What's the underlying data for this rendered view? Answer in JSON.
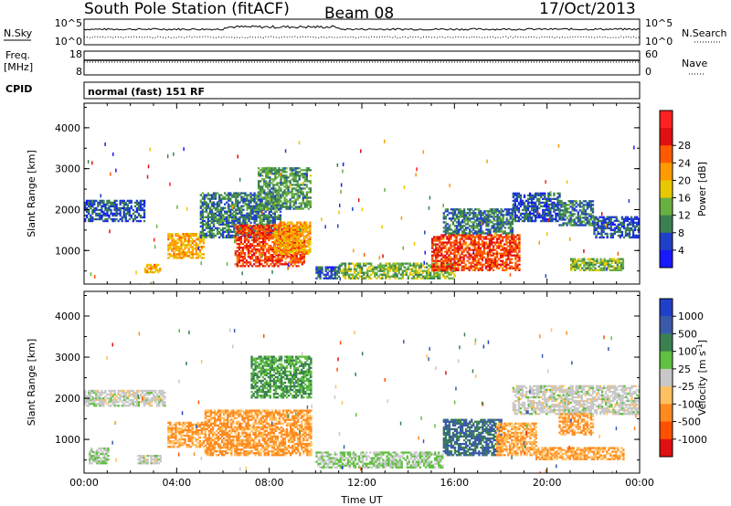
{
  "header": {
    "title": "South Pole Station (fitACF)",
    "beam": "Beam 08",
    "date": "17/Oct/2013"
  },
  "noise_panel": {
    "left_label": "N.Sky",
    "left_ticks": [
      "10^5",
      "10^0"
    ],
    "right_ticks": [
      "10^5",
      "10^0"
    ],
    "right_label": "N.Search"
  },
  "freq_panel": {
    "left_label_1": "Freq.",
    "left_label_2": "[MHz]",
    "left_ticks": [
      "18",
      "8"
    ],
    "right_ticks": [
      "60",
      "0"
    ],
    "right_label": "Nave"
  },
  "cpid_panel": {
    "label": "CPID",
    "text": "normal (fast) 151 RF"
  },
  "chart_data": [
    {
      "type": "heatmap",
      "quantity": "power",
      "ylabel": "Slant Range [km]",
      "ylim": [
        180,
        4600
      ],
      "yticks": [
        "1000",
        "2000",
        "3000",
        "4000"
      ],
      "xticks": [
        "00:00",
        "04:00",
        "08:00",
        "12:00",
        "16:00",
        "20:00",
        "00:00"
      ],
      "xlim_hours": [
        0,
        24
      ],
      "colorbar": {
        "label": "Power [dB]",
        "ticks": [
          "4",
          "8",
          "12",
          "16",
          "20",
          "24",
          "28"
        ],
        "colors": [
          "#1919ff",
          "#2040c8",
          "#3a8050",
          "#68b040",
          "#e8c800",
          "#ff9a00",
          "#ff5a00",
          "#e01010",
          "#ff2020"
        ],
        "range": [
          0,
          31
        ]
      },
      "echo_regions": [
        {
          "t0": 0.0,
          "t1": 2.6,
          "r0": 1700,
          "r1": 2200,
          "db": 6
        },
        {
          "t0": 2.6,
          "t1": 3.3,
          "r0": 450,
          "r1": 650,
          "db": 18
        },
        {
          "t0": 3.6,
          "t1": 5.2,
          "r0": 800,
          "r1": 1400,
          "db": 18
        },
        {
          "t0": 5.0,
          "t1": 8.5,
          "r0": 1300,
          "r1": 2400,
          "db": 8
        },
        {
          "t0": 6.5,
          "t1": 9.5,
          "r0": 600,
          "r1": 1600,
          "db": 24
        },
        {
          "t0": 7.5,
          "t1": 9.8,
          "r0": 2000,
          "r1": 3000,
          "db": 10
        },
        {
          "t0": 8.2,
          "t1": 9.8,
          "r0": 900,
          "r1": 1700,
          "db": 18
        },
        {
          "t0": 10.0,
          "t1": 11.0,
          "r0": 300,
          "r1": 600,
          "db": 6
        },
        {
          "t0": 11.0,
          "t1": 16.0,
          "r0": 300,
          "r1": 700,
          "db": 12
        },
        {
          "t0": 15.0,
          "t1": 18.8,
          "r0": 500,
          "r1": 1400,
          "db": 24
        },
        {
          "t0": 15.5,
          "t1": 18.5,
          "r0": 1400,
          "r1": 2000,
          "db": 8
        },
        {
          "t0": 18.5,
          "t1": 20.5,
          "r0": 1700,
          "r1": 2400,
          "db": 6
        },
        {
          "t0": 20.5,
          "t1": 22.0,
          "r0": 1600,
          "r1": 2200,
          "db": 8
        },
        {
          "t0": 21.0,
          "t1": 23.3,
          "r0": 500,
          "r1": 800,
          "db": 12
        },
        {
          "t0": 22.0,
          "t1": 24.0,
          "r0": 1300,
          "r1": 1800,
          "db": 6
        }
      ]
    },
    {
      "type": "heatmap",
      "quantity": "velocity",
      "ylabel": "Slant Range [km]",
      "ylim": [
        180,
        4600
      ],
      "yticks": [
        "1000",
        "2000",
        "3000",
        "4000"
      ],
      "xticks": [
        "00:00",
        "04:00",
        "08:00",
        "12:00",
        "16:00",
        "20:00",
        "00:00"
      ],
      "xlabel": "Time UT",
      "xlim_hours": [
        0,
        24
      ],
      "colorbar": {
        "label": "Velocity [m s",
        "label_exponent": "-1",
        "label_close": "]",
        "ticks": [
          "1000",
          "500",
          "100",
          "25",
          "-25",
          "-100",
          "-500",
          "-1000"
        ],
        "colors": [
          "#2040c8",
          "#3a5aa8",
          "#3a8050",
          "#60c040",
          "#c8c8c8",
          "#ffc060",
          "#ff8a20",
          "#ff5000",
          "#e01010"
        ],
        "range": [
          -1200,
          1200
        ]
      },
      "echo_regions": [
        {
          "t0": 0.0,
          "t1": 3.5,
          "r0": 1800,
          "r1": 2200,
          "v": 0
        },
        {
          "t0": 0.2,
          "t1": 1.0,
          "r0": 400,
          "r1": 800,
          "v": 120
        },
        {
          "t0": 2.3,
          "t1": 3.3,
          "r0": 400,
          "r1": 600,
          "v": 0
        },
        {
          "t0": 3.6,
          "t1": 5.2,
          "r0": 800,
          "r1": 1400,
          "v": -400
        },
        {
          "t0": 5.2,
          "t1": 9.8,
          "r0": 600,
          "r1": 1700,
          "v": -450
        },
        {
          "t0": 7.2,
          "t1": 9.8,
          "r0": 2000,
          "r1": 3000,
          "v": 400
        },
        {
          "t0": 10.0,
          "t1": 15.5,
          "r0": 300,
          "r1": 700,
          "v": 150
        },
        {
          "t0": 15.5,
          "t1": 18.0,
          "r0": 600,
          "r1": 1500,
          "v": 700
        },
        {
          "t0": 17.8,
          "t1": 19.5,
          "r0": 600,
          "r1": 1400,
          "v": -400
        },
        {
          "t0": 19.5,
          "t1": 23.3,
          "r0": 500,
          "r1": 800,
          "v": -400
        },
        {
          "t0": 18.5,
          "t1": 24.0,
          "r0": 1600,
          "r1": 2300,
          "v": 0
        },
        {
          "t0": 20.5,
          "t1": 22.0,
          "r0": 1100,
          "r1": 1600,
          "v": -450
        }
      ]
    }
  ]
}
